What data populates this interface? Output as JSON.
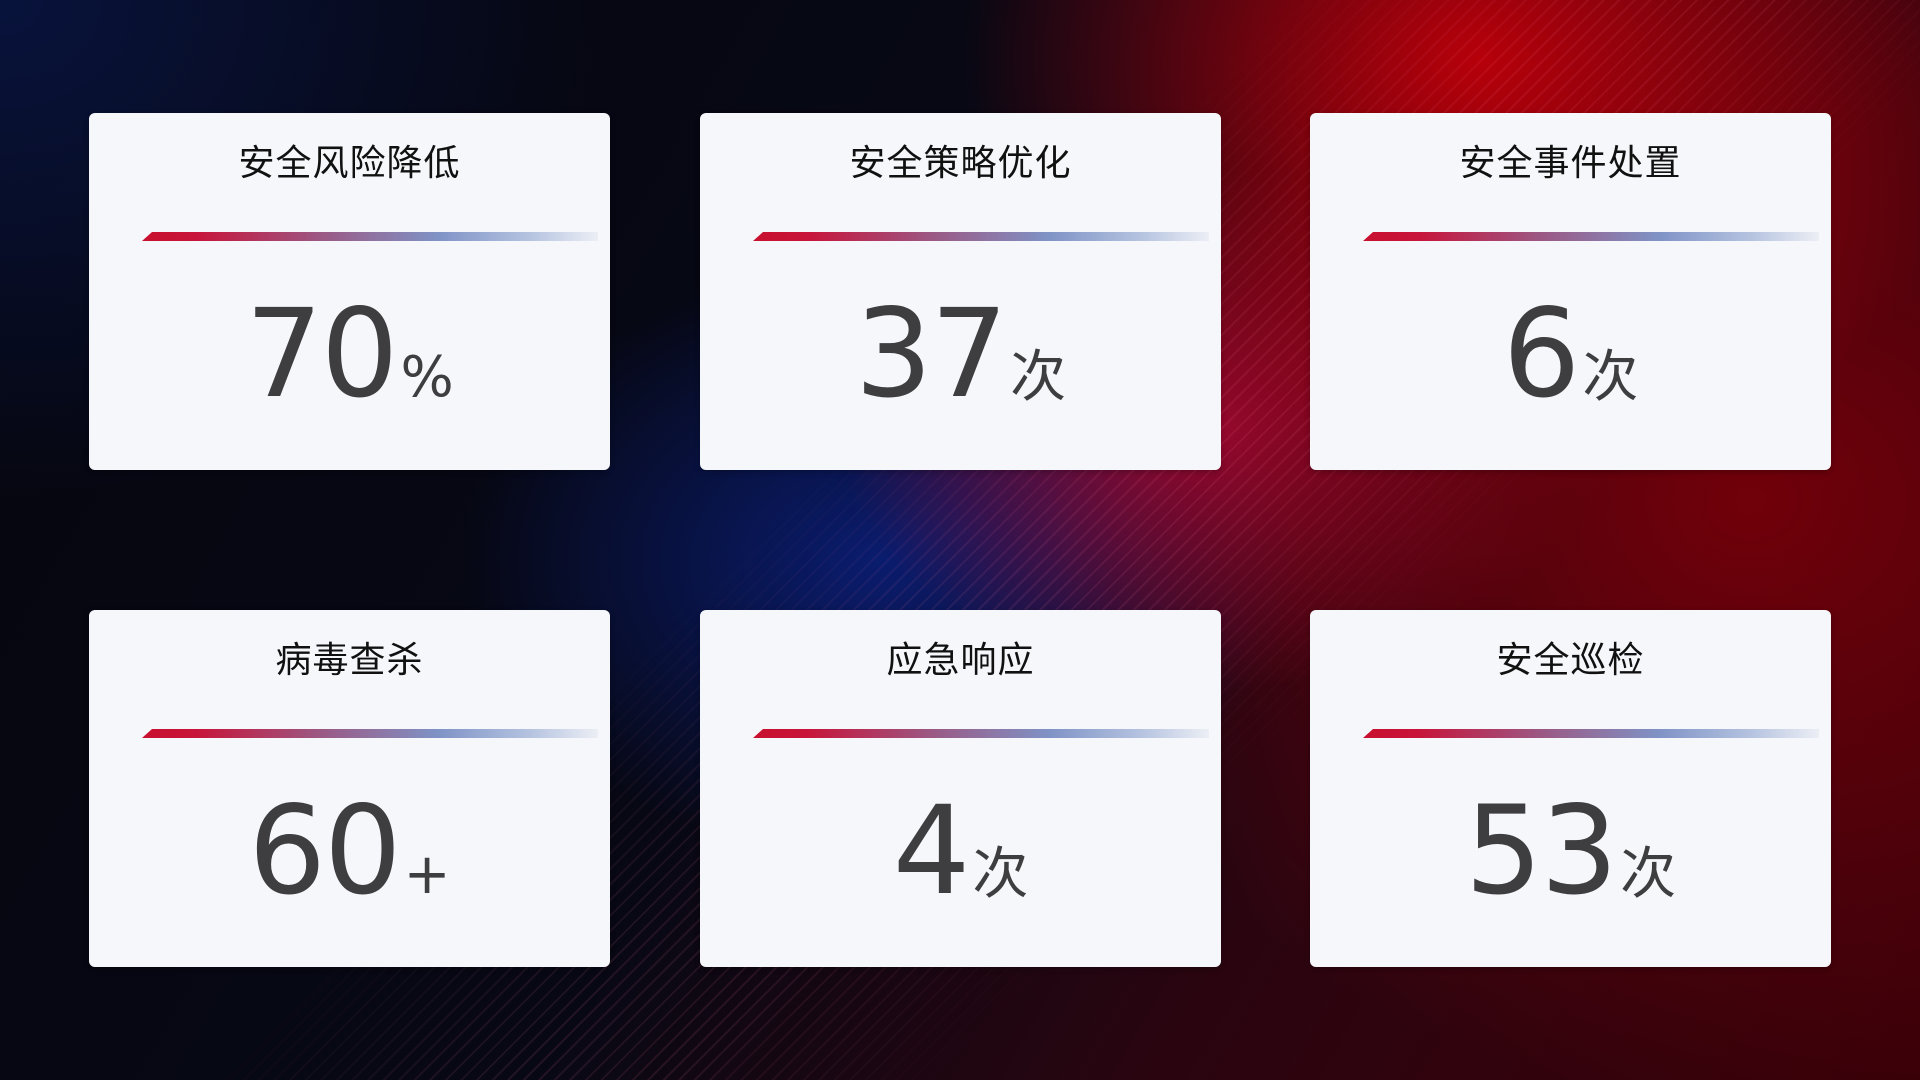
{
  "cards": [
    {
      "title": "安全风险降低",
      "value": "70",
      "unit": "%"
    },
    {
      "title": "安全策略优化",
      "value": "37",
      "unit": "次"
    },
    {
      "title": "安全事件处置",
      "value": "6",
      "unit": "次"
    },
    {
      "title": "病毒查杀",
      "value": "60",
      "unit": "+"
    },
    {
      "title": "应急响应",
      "value": "4",
      "unit": "次"
    },
    {
      "title": "安全巡检",
      "value": "53",
      "unit": "次"
    }
  ],
  "colors": {
    "accent_red": "#c8102e",
    "accent_blue": "#7f93c6",
    "card_bg": "#f6f7fb",
    "value_text": "#3e3e40"
  }
}
